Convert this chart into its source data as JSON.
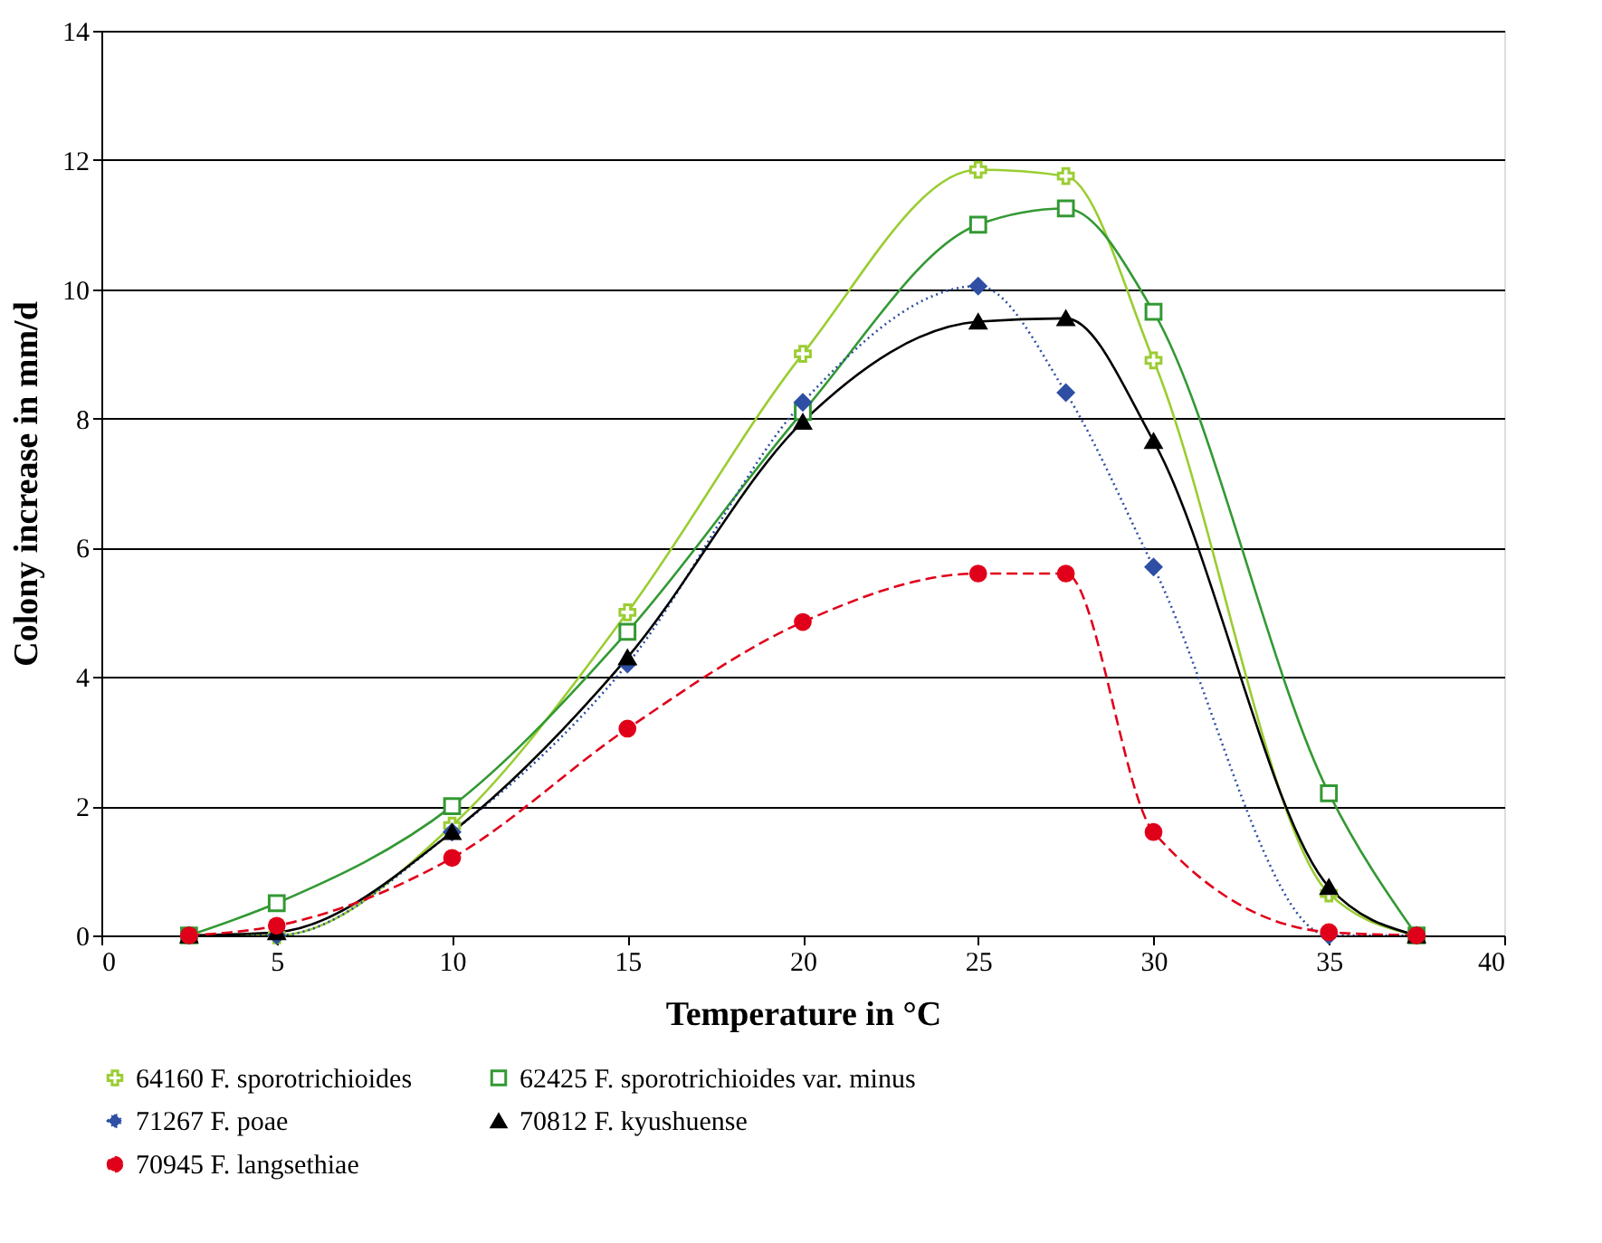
{
  "chart_data": {
    "type": "line",
    "xlabel": "Temperature in °C",
    "ylabel": "Colony increase in mm/d",
    "x": [
      2.5,
      5,
      10,
      15,
      20,
      25,
      27.5,
      30,
      35,
      37.5
    ],
    "xlim": [
      0,
      40
    ],
    "xticks": [
      0,
      5,
      10,
      15,
      20,
      25,
      30,
      35,
      40
    ],
    "ylim": [
      0,
      14
    ],
    "yticks": [
      0,
      2,
      4,
      6,
      8,
      10,
      12,
      14
    ],
    "grid": "y",
    "legend": "bottom",
    "series": [
      {
        "name": "64160 F. sporotrichioides",
        "color": "#9acd32",
        "marker": "cross",
        "line_style": "solid",
        "values": [
          0,
          0,
          1.7,
          5.0,
          9.0,
          11.85,
          11.75,
          8.9,
          0.65,
          0
        ]
      },
      {
        "name": "62425 F. sporotrichioides var. minus",
        "color": "#339933",
        "marker": "square",
        "line_style": "solid",
        "values": [
          0,
          0.5,
          2.0,
          4.7,
          8.1,
          11.0,
          11.25,
          9.65,
          2.2,
          0
        ]
      },
      {
        "name": "71267 F. poae",
        "color": "#2e4fa3",
        "marker": "diamond",
        "line_style": "dotted",
        "values": [
          0,
          0,
          1.6,
          4.2,
          8.25,
          10.05,
          8.4,
          5.7,
          0,
          0
        ]
      },
      {
        "name": "70812 F. kyushuense",
        "color": "#000000",
        "marker": "triangle",
        "line_style": "solid",
        "values": [
          0,
          0.05,
          1.6,
          4.3,
          7.95,
          9.5,
          9.55,
          7.65,
          0.75,
          0
        ]
      },
      {
        "name": "70945 F. langsethiae",
        "color": "#e0001a",
        "marker": "circle",
        "line_style": "dashed",
        "values": [
          0,
          0.15,
          1.2,
          3.2,
          4.85,
          5.6,
          5.6,
          1.6,
          0.05,
          0
        ]
      }
    ]
  }
}
